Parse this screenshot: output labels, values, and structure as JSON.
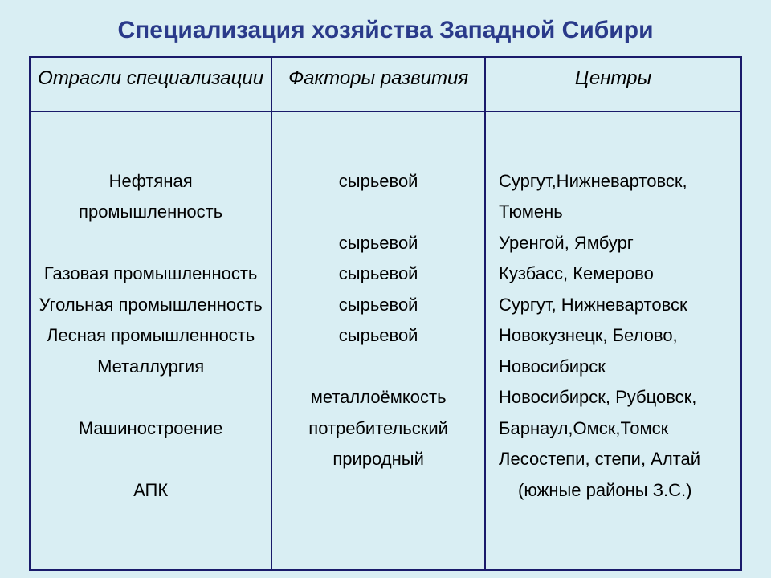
{
  "title": "Специализация хозяйства Западной Сибири",
  "colors": {
    "page_background": "#d9eef3",
    "title_color": "#2a3a8a",
    "border_color": "#1a1a6a",
    "text_color": "#000000"
  },
  "typography": {
    "title_fontsize_pt": 22,
    "header_fontsize_pt": 18,
    "body_fontsize_pt": 16,
    "font_family": "Arial"
  },
  "table": {
    "type": "table",
    "column_widths_pct": [
      34,
      30,
      36
    ],
    "columns": [
      "Отрасли специализации",
      "Факторы развития",
      "Центры"
    ],
    "rows": [
      {
        "industry": "Нефтяная промышленность",
        "factor": "сырьевой",
        "centers": "Сургут,Нижневартовск, Тюмень"
      },
      {
        "industry": "Газовая промышленность",
        "factor": "сырьевой",
        "centers": "Уренгой, Ямбург"
      },
      {
        "industry": "Угольная промышленность",
        "factor": "сырьевой",
        "centers": "Кузбасс, Кемерово"
      },
      {
        "industry": "Лесная промышленность",
        "factor": "сырьевой",
        "centers": "Сургут, Нижневартовск"
      },
      {
        "industry": "Металлургия",
        "factor": "сырьевой",
        "centers": "Новокузнецк, Белово, Новосибирск"
      },
      {
        "industry": "Машиностроение",
        "factor": "металлоёмкость потребительский",
        "centers": "Новосибирск, Рубцовск, Барнаул,Омск,Томск"
      },
      {
        "industry": "АПК",
        "factor": "природный",
        "centers": "Лесостепи, степи, Алтай (южные районы З.С.)"
      }
    ],
    "body_lines": {
      "col1": [
        "",
        "Нефтяная промышленность",
        "",
        "Газовая промышленность",
        "Угольная промышленность",
        "Лесная промышленность",
        "Металлургия",
        "",
        "Машиностроение",
        "",
        "АПК",
        ""
      ],
      "col2": [
        "",
        "сырьевой",
        "",
        "сырьевой",
        "сырьевой",
        "сырьевой",
        "сырьевой",
        "",
        "металлоёмкость",
        "потребительский",
        "природный",
        ""
      ],
      "col3": [
        "",
        "Сургут,Нижневартовск,",
        "Тюмень",
        "Уренгой, Ямбург",
        "Кузбасс, Кемерово",
        "Сургут, Нижневартовск",
        "Новокузнецк, Белово,",
        "Новосибирск",
        "Новосибирск, Рубцовск,",
        "Барнаул,Омск,Томск",
        "Лесостепи, степи, Алтай",
        "   (южные районы З.С.)"
      ]
    }
  }
}
